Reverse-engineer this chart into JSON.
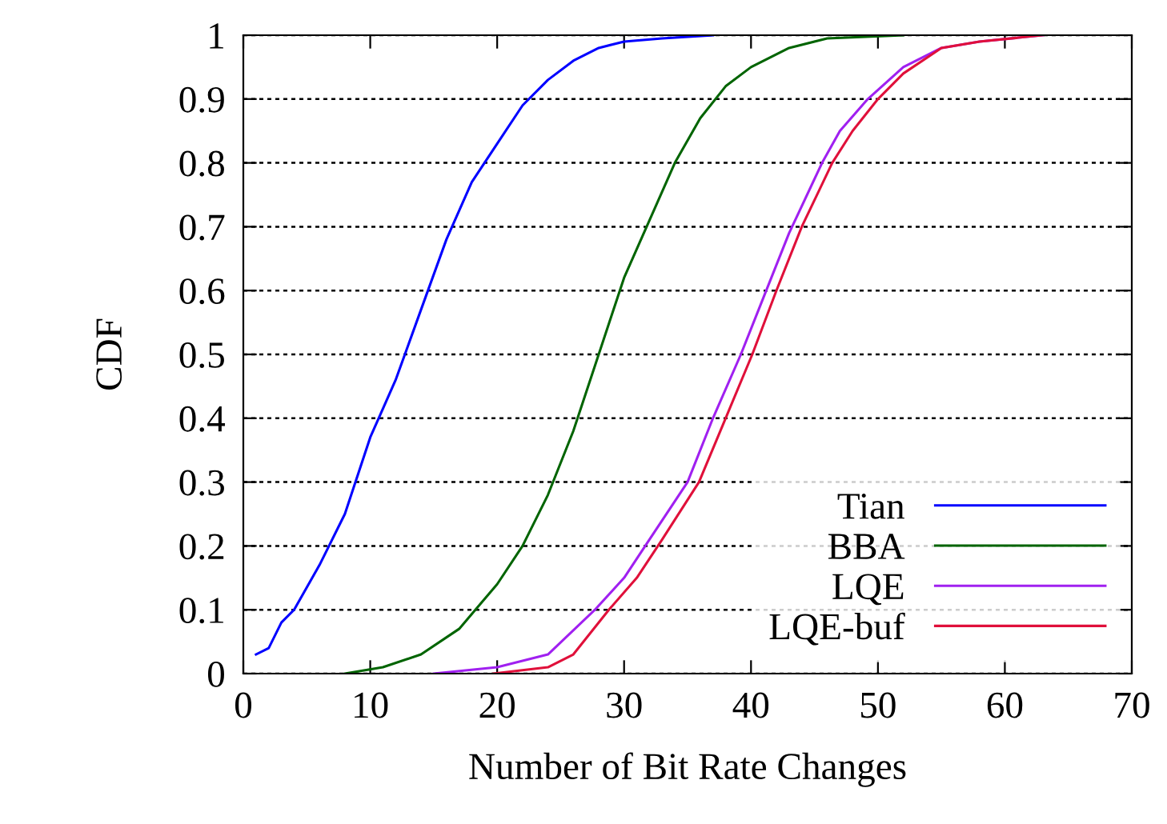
{
  "chart_data": {
    "type": "line",
    "xlabel": "Number of Bit Rate Changes",
    "ylabel": "CDF",
    "xlim": [
      0,
      70
    ],
    "ylim": [
      0,
      1
    ],
    "xticks": [
      0,
      10,
      20,
      30,
      40,
      50,
      60,
      70
    ],
    "yticks": [
      0,
      0.1,
      0.2,
      0.3,
      0.4,
      0.5,
      0.6,
      0.7,
      0.8,
      0.9,
      1
    ],
    "grid": "y",
    "legend": "bottom right",
    "line_style": "solid",
    "marker": "none",
    "series": [
      {
        "name": "Tian",
        "color": "#0000ff",
        "x": [
          1,
          2,
          3,
          4,
          6,
          8,
          10,
          12,
          14,
          16,
          18,
          20,
          22,
          24,
          26,
          28,
          30,
          33,
          37
        ],
        "values": [
          0.03,
          0.04,
          0.08,
          0.1,
          0.17,
          0.25,
          0.37,
          0.46,
          0.57,
          0.68,
          0.77,
          0.83,
          0.89,
          0.93,
          0.96,
          0.98,
          0.99,
          0.995,
          1.0
        ]
      },
      {
        "name": "BBA",
        "color": "#006400",
        "x": [
          8,
          11,
          14,
          17,
          20,
          22,
          24,
          26,
          28,
          30,
          32,
          34,
          36,
          38,
          40,
          43,
          46,
          52
        ],
        "values": [
          0,
          0.01,
          0.03,
          0.07,
          0.14,
          0.2,
          0.28,
          0.38,
          0.5,
          0.62,
          0.71,
          0.8,
          0.87,
          0.92,
          0.95,
          0.98,
          0.995,
          1.0
        ]
      },
      {
        "name": "LQE",
        "color": "#a020f0",
        "x": [
          15,
          20,
          24,
          27.7,
          30,
          32,
          35,
          37,
          39.2,
          41,
          43,
          45.6,
          47,
          49.2,
          52,
          55,
          58,
          63
        ],
        "values": [
          0,
          0.01,
          0.03,
          0.1,
          0.15,
          0.21,
          0.3,
          0.4,
          0.5,
          0.59,
          0.69,
          0.8,
          0.85,
          0.9,
          0.95,
          0.98,
          0.99,
          1.0
        ]
      },
      {
        "name": "LQE-buf",
        "color": "#e0103a",
        "x": [
          19.7,
          24,
          26,
          28.8,
          31,
          33,
          35.9,
          38,
          40.1,
          42,
          44,
          46.4,
          48,
          50,
          52,
          55,
          58,
          63
        ],
        "values": [
          0,
          0.01,
          0.03,
          0.1,
          0.15,
          0.21,
          0.3,
          0.4,
          0.5,
          0.6,
          0.7,
          0.8,
          0.85,
          0.9,
          0.94,
          0.98,
          0.99,
          1.0
        ]
      }
    ]
  }
}
